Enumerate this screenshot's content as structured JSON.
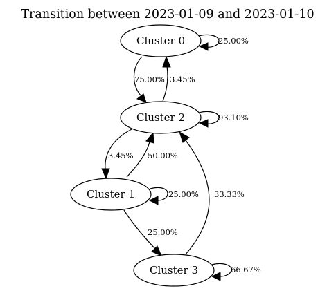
{
  "title": "Transition between 2023-01-09 and 2023-01-10",
  "nodes": {
    "c0": "Cluster 0",
    "c1": "Cluster 1",
    "c2": "Cluster 2",
    "c3": "Cluster 3"
  },
  "edges": {
    "c0_c0": "25.00%",
    "c0_c2": "75.00%",
    "c2_c0": "3.45%",
    "c2_c2": "93.10%",
    "c2_c1": "3.45%",
    "c1_c2": "50.00%",
    "c1_c1": "25.00%",
    "c1_c3": "25.00%",
    "c3_c2": "33.33%",
    "c3_c3": "66.67%"
  }
}
